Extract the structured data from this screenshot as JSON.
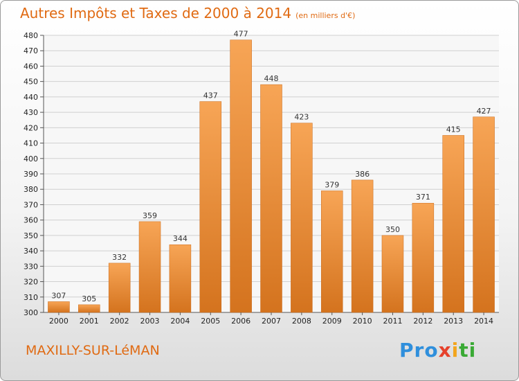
{
  "header": {
    "title": "Autres Impôts et Taxes de 2000 à 2014",
    "subtitle": "(en milliers d'€)"
  },
  "footer": {
    "city": "MAXILLY-SUR-LéMAN",
    "logo": [
      "Pro",
      "x",
      "i",
      "ti"
    ]
  },
  "colors": {
    "accent": "#e06a12",
    "bar_top": "#f7a556",
    "bar_bottom": "#d4731e"
  },
  "chart_data": {
    "type": "bar",
    "title": "Autres Impôts et Taxes de 2000 à 2014",
    "subtitle": "(en milliers d'€)",
    "xlabel": "",
    "ylabel": "",
    "categories": [
      "2000",
      "2001",
      "2002",
      "2003",
      "2004",
      "2005",
      "2006",
      "2007",
      "2008",
      "2009",
      "2010",
      "2011",
      "2012",
      "2013",
      "2014"
    ],
    "values": [
      307,
      305,
      332,
      359,
      344,
      437,
      477,
      448,
      423,
      379,
      386,
      350,
      371,
      415,
      427
    ],
    "ylim": [
      300,
      480
    ],
    "ytick_step": 10,
    "grid": true,
    "legend": "none"
  }
}
